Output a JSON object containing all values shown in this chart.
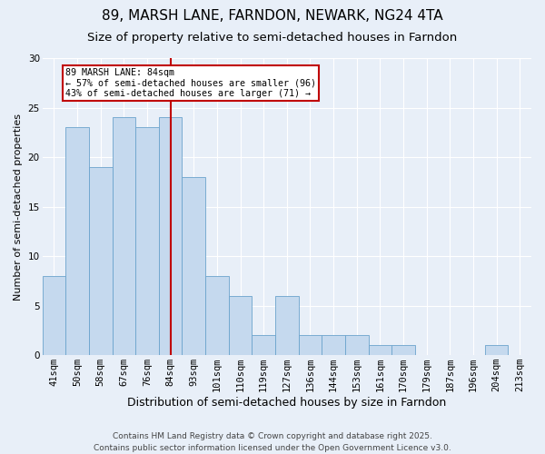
{
  "title1": "89, MARSH LANE, FARNDON, NEWARK, NG24 4TA",
  "title2": "Size of property relative to semi-detached houses in Farndon",
  "xlabel": "Distribution of semi-detached houses by size in Farndon",
  "ylabel": "Number of semi-detached properties",
  "categories": [
    "41sqm",
    "50sqm",
    "58sqm",
    "67sqm",
    "76sqm",
    "84sqm",
    "93sqm",
    "101sqm",
    "110sqm",
    "119sqm",
    "127sqm",
    "136sqm",
    "144sqm",
    "153sqm",
    "161sqm",
    "170sqm",
    "179sqm",
    "187sqm",
    "196sqm",
    "204sqm",
    "213sqm"
  ],
  "values": [
    8,
    23,
    19,
    24,
    23,
    24,
    18,
    8,
    6,
    2,
    6,
    2,
    2,
    2,
    1,
    1,
    0,
    0,
    0,
    1,
    0
  ],
  "bar_color": "#C5D9EE",
  "bar_edge_color": "#6BA3CC",
  "highlight_index": 5,
  "highlight_line_color": "#C00000",
  "annotation_text": "89 MARSH LANE: 84sqm\n← 57% of semi-detached houses are smaller (96)\n43% of semi-detached houses are larger (71) →",
  "annotation_box_color": "#C00000",
  "ylim": [
    0,
    30
  ],
  "yticks": [
    0,
    5,
    10,
    15,
    20,
    25,
    30
  ],
  "background_color": "#E8EFF8",
  "fig_background_color": "#E8EFF8",
  "grid_color": "#FFFFFF",
  "footer_text": "Contains HM Land Registry data © Crown copyright and database right 2025.\nContains public sector information licensed under the Open Government Licence v3.0.",
  "title1_fontsize": 11,
  "title2_fontsize": 9.5,
  "xlabel_fontsize": 9,
  "ylabel_fontsize": 8,
  "tick_fontsize": 7.5,
  "footer_fontsize": 6.5
}
